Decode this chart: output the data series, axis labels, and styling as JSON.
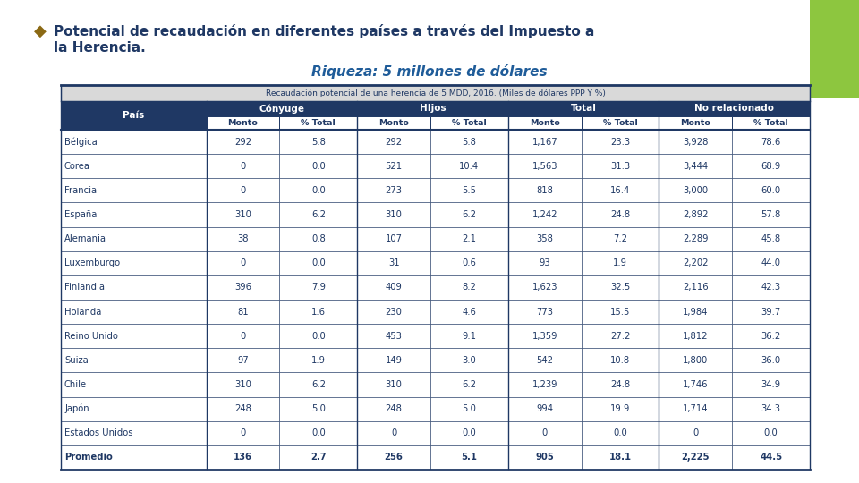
{
  "title_bullet": "◆",
  "title_line1": "Potencial de recaudación en diferentes países a través del Impuesto a",
  "title_line2": "la Herencia.",
  "subtitle": "Riqueza: 5 millones de dólares",
  "table_title": "Recaudación potencial de una herencia de 5 MDD, 2016. (Miles de dólares PPP Y %)",
  "col_groups": [
    "Cónyuge",
    "HIjos",
    "Total",
    "No relacionado"
  ],
  "col_subheaders": [
    "Monto",
    "% Total",
    "Monto",
    "% Total",
    "Monto",
    "% Total",
    "Monto",
    "% Total"
  ],
  "row_header": "País",
  "countries": [
    "Bélgica",
    "Corea",
    "Francia",
    "España",
    "Alemania",
    "Luxemburgo",
    "Finlandia",
    "Holanda",
    "Reino Unido",
    "Suiza",
    "Chile",
    "Japón",
    "Estados Unidos",
    "Promedio"
  ],
  "data": [
    [
      "292",
      "5.8",
      "292",
      "5.8",
      "1,167",
      "23.3",
      "3,928",
      "78.6"
    ],
    [
      "0",
      "0.0",
      "521",
      "10.4",
      "1,563",
      "31.3",
      "3,444",
      "68.9"
    ],
    [
      "0",
      "0.0",
      "273",
      "5.5",
      "818",
      "16.4",
      "3,000",
      "60.0"
    ],
    [
      "310",
      "6.2",
      "310",
      "6.2",
      "1,242",
      "24.8",
      "2,892",
      "57.8"
    ],
    [
      "38",
      "0.8",
      "107",
      "2.1",
      "358",
      "7.2",
      "2,289",
      "45.8"
    ],
    [
      "0",
      "0.0",
      "31",
      "0.6",
      "93",
      "1.9",
      "2,202",
      "44.0"
    ],
    [
      "396",
      "7.9",
      "409",
      "8.2",
      "1,623",
      "32.5",
      "2,116",
      "42.3"
    ],
    [
      "81",
      "1.6",
      "230",
      "4.6",
      "773",
      "15.5",
      "1,984",
      "39.7"
    ],
    [
      "0",
      "0.0",
      "453",
      "9.1",
      "1,359",
      "27.2",
      "1,812",
      "36.2"
    ],
    [
      "97",
      "1.9",
      "149",
      "3.0",
      "542",
      "10.8",
      "1,800",
      "36.0"
    ],
    [
      "310",
      "6.2",
      "310",
      "6.2",
      "1,239",
      "24.8",
      "1,746",
      "34.9"
    ],
    [
      "248",
      "5.0",
      "248",
      "5.0",
      "994",
      "19.9",
      "1,714",
      "34.3"
    ],
    [
      "0",
      "0.0",
      "0",
      "0.0",
      "0",
      "0.0",
      "0",
      "0.0"
    ],
    [
      "136",
      "2.7",
      "256",
      "5.1",
      "905",
      "18.1",
      "2,225",
      "44.5"
    ]
  ],
  "is_bold_row": [
    false,
    false,
    false,
    false,
    false,
    false,
    false,
    false,
    false,
    false,
    false,
    false,
    false,
    true
  ],
  "title_color": "#1F3864",
  "bullet_color": "#8B6914",
  "subtitle_color": "#1F5C99",
  "header_bg_color": "#1F3864",
  "header_text_color": "#FFFFFF",
  "row_text_color": "#1F3864",
  "table_title_bg": "#D9D9D9",
  "table_title_color": "#1F3864",
  "green_rect_color": "#8DC63F",
  "table_border_color": "#1F3864",
  "bg_color": "#FFFFFF"
}
